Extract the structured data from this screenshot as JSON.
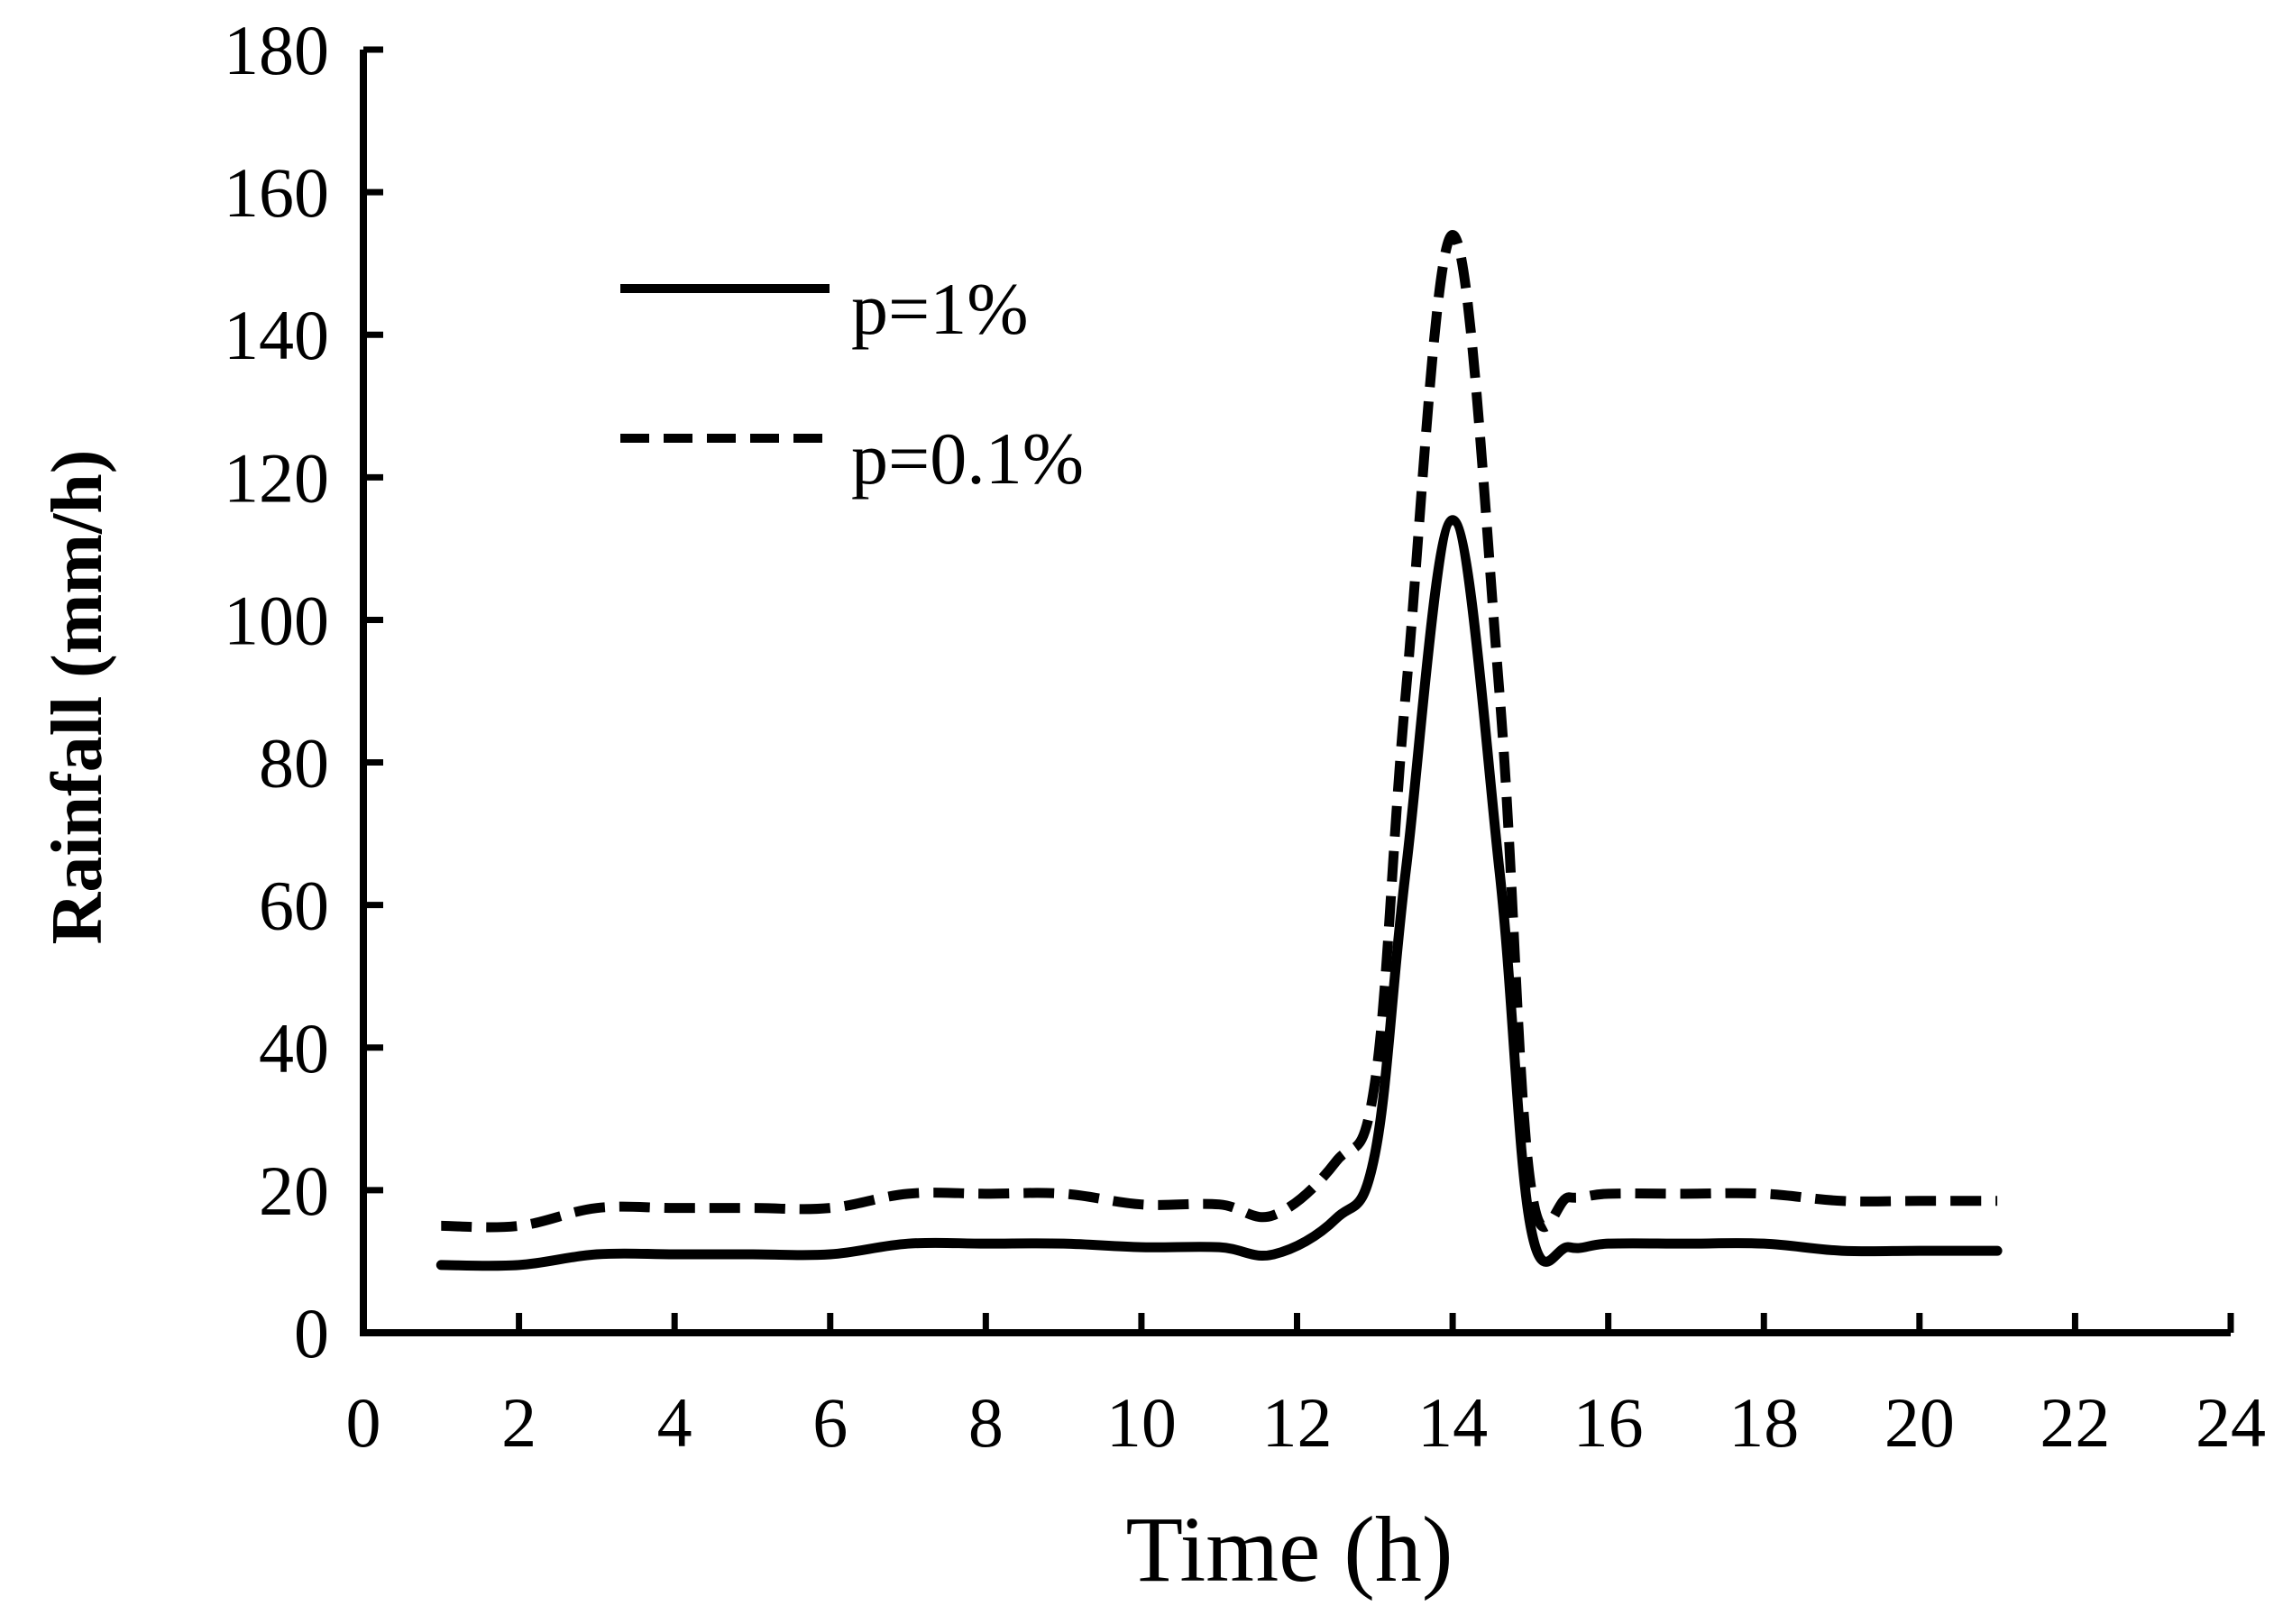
{
  "chart_data": {
    "type": "line",
    "title": "",
    "xlabel": "Time (h)",
    "ylabel": "Rainfall (mm/h)",
    "xlim": [
      0,
      24
    ],
    "ylim": [
      0,
      180
    ],
    "xticks": [
      0,
      2,
      4,
      6,
      8,
      10,
      12,
      14,
      16,
      18,
      20,
      22,
      24
    ],
    "yticks": [
      0,
      20,
      40,
      60,
      80,
      100,
      120,
      140,
      160,
      180
    ],
    "grid": false,
    "legend_position": "top-left",
    "series": [
      {
        "name": "p=1%",
        "style": "solid",
        "color": "#000000",
        "x": [
          1,
          2,
          3,
          4,
          5,
          6,
          7,
          8,
          9,
          10,
          11,
          11.7,
          12.5,
          13,
          13.4,
          14,
          14.6,
          15,
          15.5,
          16,
          17,
          18,
          19,
          20,
          21
        ],
        "y": [
          9.5,
          9.5,
          11,
          11,
          11,
          11,
          12.5,
          12.5,
          12.5,
          12,
          12,
          11,
          16,
          25,
          65,
          114,
          65,
          15,
          12,
          12.5,
          12.5,
          12.5,
          11.5,
          11.5,
          11.5
        ]
      },
      {
        "name": "p=0.1%",
        "style": "dashed",
        "color": "#000000",
        "x": [
          1,
          2,
          3,
          4,
          5,
          6,
          7,
          8,
          9,
          10,
          11,
          11.7,
          12.5,
          13,
          13.4,
          14,
          14.6,
          15,
          15.5,
          16,
          17,
          18,
          19,
          20,
          21
        ],
        "y": [
          15,
          15,
          17.5,
          17.5,
          17.5,
          17.5,
          19.5,
          19.5,
          19.5,
          18,
          18,
          16.5,
          24,
          35,
          90,
          154,
          90,
          21,
          19,
          19.5,
          19.5,
          19.5,
          18.5,
          18.5,
          18.5
        ]
      }
    ]
  }
}
